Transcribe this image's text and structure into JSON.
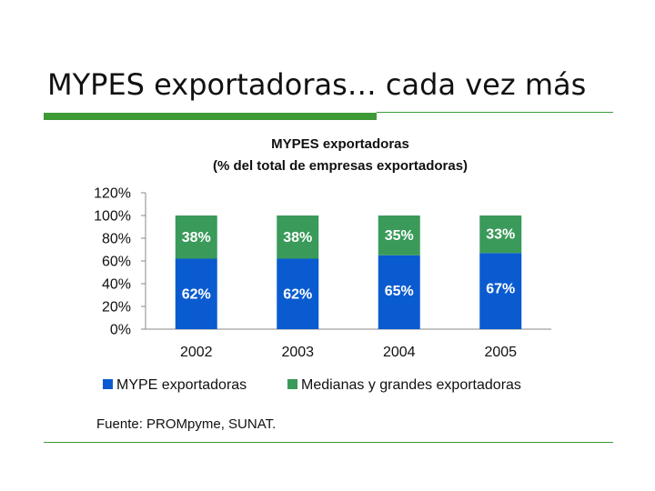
{
  "slide": {
    "title": "MYPES exportadoras… cada vez más",
    "source": "Fuente: PROMpyme, SUNAT."
  },
  "colors": {
    "accent_rule": "#3d9a36",
    "mype": "#0a5bd0",
    "medianas": "#3a9a5a"
  },
  "chart_data": {
    "type": "bar",
    "stacked": true,
    "title": "MYPES exportadoras",
    "subtitle": "(% del total de empresas exportadoras)",
    "categories": [
      "2002",
      "2003",
      "2004",
      "2005"
    ],
    "series": [
      {
        "name": "MYPE exportadoras",
        "values": [
          62,
          62,
          65,
          67
        ],
        "labels": [
          "62%",
          "62%",
          "65%",
          "67%"
        ]
      },
      {
        "name": "Medianas y grandes exportadoras",
        "values": [
          38,
          38,
          35,
          33
        ],
        "labels": [
          "38%",
          "38%",
          "35%",
          "33%"
        ]
      }
    ],
    "ylim": [
      0,
      120
    ],
    "yticks": [
      0,
      20,
      40,
      60,
      80,
      100,
      120
    ],
    "ytick_labels": [
      "0%",
      "20%",
      "40%",
      "60%",
      "80%",
      "100%",
      "120%"
    ],
    "grid": false,
    "legend": "bottom"
  }
}
